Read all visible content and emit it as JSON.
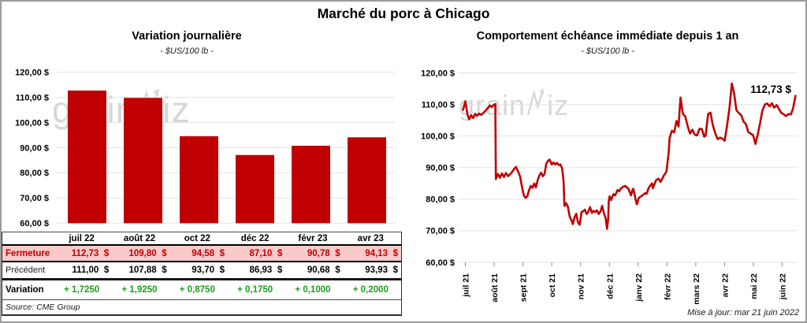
{
  "header": {
    "title": "Marché du porc à Chicago"
  },
  "footer": {
    "source": "Source: CME Group",
    "updated": "Mise à jour: mar 21 juin 2022"
  },
  "watermark": {
    "part1": "grain",
    "part2": "iz"
  },
  "colors": {
    "red": "#C00000",
    "pink_row": "#F8CACA",
    "green": "#1E9C1E",
    "grid": "#E3E3E3",
    "watermark": "#D7D7D7",
    "frame_border": "#9B9B9B"
  },
  "chart_data": [
    {
      "type": "bar",
      "title": "Variation  journalière",
      "subtitle": "- $US/100 lb -",
      "categories": [
        "juil 22",
        "août 22",
        "oct 22",
        "déc 22",
        "févr 23",
        "avr 23"
      ],
      "values": [
        112.73,
        109.8,
        94.58,
        87.1,
        90.78,
        94.13
      ],
      "ylim": [
        60,
        120
      ],
      "ytick_step": 10,
      "ytick_labels": [
        "60,00 $",
        "70,00 $",
        "80,00 $",
        "90,00 $",
        "100,00 $",
        "110,00 $",
        "120,00 $"
      ],
      "bar_color": "#C00000",
      "grid": true,
      "legend": "none"
    },
    {
      "type": "line",
      "title": "Comportement  échéance immédiate depuis 1 an",
      "subtitle": "- $US/100 lb -",
      "x_categories": [
        "juil 21",
        "août 21",
        "sept 21",
        "oct 21",
        "nov 21",
        "déc 21",
        "janv 22",
        "févr 22",
        "mars 22",
        "avr 22",
        "mai 22",
        "juin 22"
      ],
      "ylim": [
        60,
        120
      ],
      "ytick_step": 10,
      "ytick_labels": [
        "60,00 $",
        "70,00 $",
        "80,00 $",
        "90,00 $",
        "100,00 $",
        "110,00 $",
        "120,00 $"
      ],
      "line_color": "#C00000",
      "grid": true,
      "legend": "none",
      "annotation": {
        "text": "112,73 $",
        "value": 112.73
      },
      "points": [
        [
          -0.08,
          108.3
        ],
        [
          0,
          111
        ],
        [
          0.07,
          106.9
        ],
        [
          0.13,
          105.3
        ],
        [
          0.2,
          106.6
        ],
        [
          0.27,
          105.7
        ],
        [
          0.34,
          107
        ],
        [
          0.41,
          106.4
        ],
        [
          0.48,
          107.1
        ],
        [
          0.55,
          106.7
        ],
        [
          0.62,
          107.3
        ],
        [
          0.7,
          108
        ],
        [
          0.78,
          108.9
        ],
        [
          0.85,
          109.7
        ],
        [
          0.92,
          109.2
        ],
        [
          1,
          110
        ],
        [
          1.04,
          110.1
        ],
        [
          1.06,
          86.4
        ],
        [
          1.13,
          88
        ],
        [
          1.2,
          86.8
        ],
        [
          1.27,
          88.2
        ],
        [
          1.34,
          87
        ],
        [
          1.41,
          88.3
        ],
        [
          1.48,
          87.3
        ],
        [
          1.55,
          87.9
        ],
        [
          1.62,
          88.6
        ],
        [
          1.69,
          89.6
        ],
        [
          1.76,
          90.2
        ],
        [
          1.83,
          88.8
        ],
        [
          1.9,
          87.2
        ],
        [
          1.97,
          83.7
        ],
        [
          2.03,
          81.2
        ],
        [
          2.09,
          80.4
        ],
        [
          2.15,
          80.9
        ],
        [
          2.21,
          82.9
        ],
        [
          2.27,
          84.2
        ],
        [
          2.33,
          83.6
        ],
        [
          2.39,
          85
        ],
        [
          2.45,
          83.7
        ],
        [
          2.51,
          86
        ],
        [
          2.57,
          87.5
        ],
        [
          2.63,
          88.4
        ],
        [
          2.69,
          87.3
        ],
        [
          2.75,
          88
        ],
        [
          2.81,
          91.2
        ],
        [
          2.87,
          92.2
        ],
        [
          2.93,
          92.5
        ],
        [
          3,
          91
        ],
        [
          3.06,
          91.6
        ],
        [
          3.12,
          91
        ],
        [
          3.18,
          91.5
        ],
        [
          3.24,
          90.8
        ],
        [
          3.3,
          91
        ],
        [
          3.36,
          89.8
        ],
        [
          3.41,
          85.8
        ],
        [
          3.44,
          77.9
        ],
        [
          3.5,
          78.7
        ],
        [
          3.56,
          77.6
        ],
        [
          3.62,
          74.6
        ],
        [
          3.68,
          73.4
        ],
        [
          3.73,
          72.1
        ],
        [
          3.79,
          74.2
        ],
        [
          3.85,
          75.4
        ],
        [
          3.91,
          72.6
        ],
        [
          3.97,
          71.9
        ],
        [
          4.03,
          75.9
        ],
        [
          4.09,
          76.2
        ],
        [
          4.15,
          76.7
        ],
        [
          4.21,
          75.3
        ],
        [
          4.27,
          76.1
        ],
        [
          4.33,
          77.5
        ],
        [
          4.39,
          75.7
        ],
        [
          4.45,
          76.3
        ],
        [
          4.51,
          75.9
        ],
        [
          4.57,
          76.5
        ],
        [
          4.63,
          75.3
        ],
        [
          4.69,
          76.1
        ],
        [
          4.75,
          77.9
        ],
        [
          4.81,
          75.6
        ],
        [
          4.87,
          74
        ],
        [
          4.92,
          70.6
        ],
        [
          4.96,
          74
        ],
        [
          4.98,
          79.6
        ],
        [
          5.01,
          80.9
        ],
        [
          5.06,
          79.7
        ],
        [
          5.14,
          81.6
        ],
        [
          5.2,
          81.2
        ],
        [
          5.28,
          82.9
        ],
        [
          5.34,
          82.5
        ],
        [
          5.39,
          83.3
        ],
        [
          5.47,
          83.9
        ],
        [
          5.55,
          84.2
        ],
        [
          5.66,
          83.3
        ],
        [
          5.75,
          81.2
        ],
        [
          5.8,
          82.9
        ],
        [
          5.83,
          83.3
        ],
        [
          5.94,
          78.7
        ],
        [
          5.96,
          78.4
        ],
        [
          6.02,
          80.4
        ],
        [
          6.1,
          80.9
        ],
        [
          6.16,
          81.3
        ],
        [
          6.24,
          81.9
        ],
        [
          6.29,
          81.7
        ],
        [
          6.37,
          83.7
        ],
        [
          6.48,
          85
        ],
        [
          6.51,
          83.5
        ],
        [
          6.62,
          86
        ],
        [
          6.7,
          86.5
        ],
        [
          6.78,
          85.5
        ],
        [
          6.89,
          87.5
        ],
        [
          6.98,
          88.7
        ],
        [
          7.06,
          94.7
        ],
        [
          7.09,
          99.3
        ],
        [
          7.17,
          101.7
        ],
        [
          7.25,
          101.2
        ],
        [
          7.33,
          104.8
        ],
        [
          7.4,
          103
        ],
        [
          7.47,
          112.2
        ],
        [
          7.55,
          107
        ],
        [
          7.63,
          106.3
        ],
        [
          7.72,
          103
        ],
        [
          7.8,
          100.8
        ],
        [
          7.88,
          102
        ],
        [
          7.96,
          100.5
        ],
        [
          8.04,
          100.2
        ],
        [
          8.13,
          102.3
        ],
        [
          8.21,
          102.2
        ],
        [
          8.29,
          99.8
        ],
        [
          8.34,
          100.1
        ],
        [
          8.43,
          107
        ],
        [
          8.51,
          107.4
        ],
        [
          8.59,
          103.5
        ],
        [
          8.67,
          101
        ],
        [
          8.76,
          99
        ],
        [
          8.84,
          99.5
        ],
        [
          8.92,
          99.2
        ],
        [
          9,
          98.5
        ],
        [
          9.08,
          103
        ],
        [
          9.17,
          109
        ],
        [
          9.25,
          116.6
        ],
        [
          9.33,
          113.5
        ],
        [
          9.41,
          108.2
        ],
        [
          9.49,
          107.3
        ],
        [
          9.58,
          106.6
        ],
        [
          9.66,
          104.5
        ],
        [
          9.74,
          103.8
        ],
        [
          9.82,
          101.3
        ],
        [
          9.9,
          100.8
        ],
        [
          9.99,
          100.3
        ],
        [
          10.07,
          97.5
        ],
        [
          10.15,
          100.5
        ],
        [
          10.23,
          104
        ],
        [
          10.31,
          108
        ],
        [
          10.4,
          110
        ],
        [
          10.48,
          110.3
        ],
        [
          10.56,
          109.4
        ],
        [
          10.64,
          110.4
        ],
        [
          10.72,
          109
        ],
        [
          10.81,
          109.8
        ],
        [
          10.89,
          108.5
        ],
        [
          10.97,
          107.3
        ],
        [
          11.05,
          106.9
        ],
        [
          11.13,
          106.3
        ],
        [
          11.22,
          107
        ],
        [
          11.3,
          106.8
        ],
        [
          11.38,
          108.8
        ],
        [
          11.46,
          112.73
        ]
      ]
    }
  ],
  "table": {
    "columns": [
      "juil 22",
      "août 22",
      "oct 22",
      "déc 22",
      "févr 23",
      "avr 23"
    ],
    "rows": [
      {
        "key": "fermeture",
        "label": "Fermeture",
        "currency": "$",
        "values": [
          "112,73",
          "109,80",
          "94,58",
          "87,10",
          "90,78",
          "94,13"
        ]
      },
      {
        "key": "precedent",
        "label": "Précédent",
        "currency": "$",
        "values": [
          "111,00",
          "107,88",
          "93,70",
          "86,93",
          "90,68",
          "93,93"
        ]
      },
      {
        "key": "variation",
        "label": "Variation",
        "currency": null,
        "values": [
          "+ 1,7250",
          "+ 1,9250",
          "+ 0,8750",
          "+ 0,1750",
          "+ 0,1000",
          "+ 0,2000"
        ]
      }
    ]
  }
}
